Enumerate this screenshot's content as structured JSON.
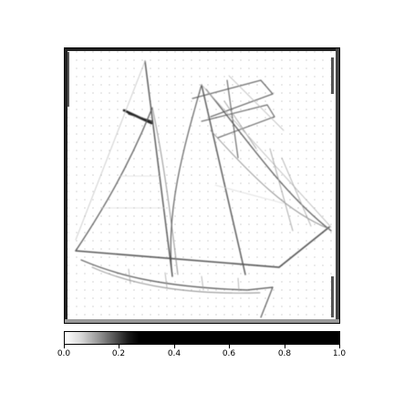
{
  "figure": {
    "subject": "sailing-ship edge map",
    "colormap": "inverted grayscale",
    "colors": {
      "background": "#ffffff",
      "ink": "#000000"
    }
  },
  "colorbar": {
    "tick_labels": [
      "0.0",
      "0.2",
      "0.4",
      "0.6",
      "0.8",
      "1.0"
    ],
    "range": [
      0.0,
      1.0
    ]
  }
}
